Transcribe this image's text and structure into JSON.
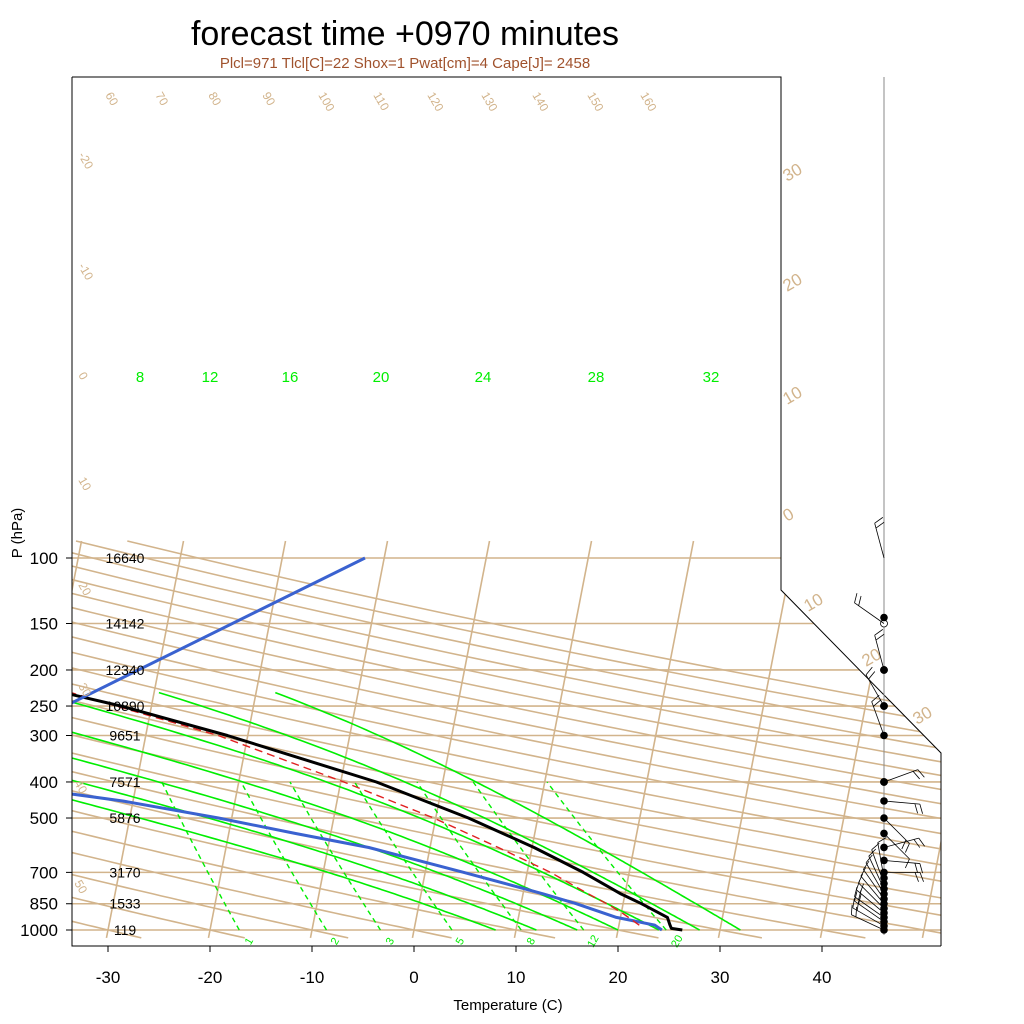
{
  "title": "forecast time +0970 minutes",
  "subtitle": "Plcl=971 Tlcl[C]=22 Shox=1 Pwat[cm]=4 Cape[J]= 2458",
  "colors": {
    "isobar": "#d2b48c",
    "isotherm": "#d2b48c",
    "adiabat": "#d2b48c",
    "moist_adiabat": "#00ee00",
    "mixing_ratio": "#00ee00",
    "temperature": "#000000",
    "dewpoint": "#3a62d0",
    "parcel": "#e02020",
    "axis": "#000000"
  },
  "chart_data": {
    "type": "skew-t",
    "xlabel": "Temperature (C)",
    "ylabel": "P (hPa)",
    "xlim": [
      -33,
      40
    ],
    "ylim": [
      1000,
      100
    ],
    "pressure_ticks": [
      100,
      150,
      200,
      250,
      300,
      400,
      500,
      700,
      850,
      1000
    ],
    "temperature_ticks": [
      -30,
      -20,
      -10,
      0,
      10,
      20,
      30,
      40
    ],
    "heights_m": [
      {
        "p": 100,
        "label": "16640"
      },
      {
        "p": 150,
        "label": "14142"
      },
      {
        "p": 200,
        "label": "12340"
      },
      {
        "p": 250,
        "label": "10890"
      },
      {
        "p": 300,
        "label": "9651"
      },
      {
        "p": 400,
        "label": "7571"
      },
      {
        "p": 500,
        "label": "5876"
      },
      {
        "p": 700,
        "label": "3170"
      },
      {
        "p": 850,
        "label": "1533"
      },
      {
        "p": 1000,
        "label": "119"
      }
    ],
    "isotherm_labels": [
      "30",
      "20",
      "10",
      "0",
      "10",
      "20",
      "30",
      "-20",
      "-10",
      "0",
      "10",
      "20",
      "30",
      "40",
      "50",
      "60",
      "70",
      "80",
      "90",
      "100",
      "110",
      "120",
      "130",
      "140",
      "150",
      "160"
    ],
    "moist_adiabat_labels": [
      "8",
      "12",
      "16",
      "20",
      "24",
      "28",
      "32"
    ],
    "mixing_ratio_labels": [
      "1",
      "2",
      "3",
      "5",
      "8",
      "12",
      "20"
    ],
    "temperature_profile": [
      {
        "p": 1000,
        "t": 26.3
      },
      {
        "p": 990,
        "t": 25.2
      },
      {
        "p": 970,
        "t": 25.0
      },
      {
        "p": 925,
        "t": 24.6
      },
      {
        "p": 850,
        "t": 21.8
      },
      {
        "p": 800,
        "t": 19.6
      },
      {
        "p": 700,
        "t": 15.5
      },
      {
        "p": 600,
        "t": 10.2
      },
      {
        "p": 500,
        "t": 3.2
      },
      {
        "p": 400,
        "t": -6.5
      },
      {
        "p": 300,
        "t": -22.0
      },
      {
        "p": 250,
        "t": -33.0
      },
      {
        "p": 225,
        "t": -40.5
      },
      {
        "p": 200,
        "t": -48.0
      },
      {
        "p": 175,
        "t": -54.5
      },
      {
        "p": 150,
        "t": -56.0
      },
      {
        "p": 125,
        "t": -57.0
      },
      {
        "p": 100,
        "t": -59.5
      }
    ],
    "dewpoint_profile": [
      {
        "p": 1000,
        "t": 24.3
      },
      {
        "p": 970,
        "t": 23.5
      },
      {
        "p": 925,
        "t": 19.6
      },
      {
        "p": 850,
        "t": 15.4
      },
      {
        "p": 800,
        "t": 12.0
      },
      {
        "p": 700,
        "t": 3.8
      },
      {
        "p": 600,
        "t": -6.0
      },
      {
        "p": 550,
        "t": -13.5
      },
      {
        "p": 500,
        "t": -21.3
      },
      {
        "p": 450,
        "t": -31.0
      },
      {
        "p": 400,
        "t": -45.0
      },
      {
        "p": 375,
        "t": -57.0
      },
      {
        "p": 350,
        "t": -70.0
      },
      {
        "p": 330,
        "t": -85.0
      }
    ],
    "parcel_profile": [
      {
        "p": 971,
        "t": 22.0
      },
      {
        "p": 900,
        "t": 20.1
      },
      {
        "p": 850,
        "t": 18.4
      },
      {
        "p": 800,
        "t": 16.4
      },
      {
        "p": 700,
        "t": 12.3
      },
      {
        "p": 600,
        "t": 6.7
      },
      {
        "p": 500,
        "t": -0.2
      },
      {
        "p": 400,
        "t": -9.7
      },
      {
        "p": 300,
        "t": -22.9
      },
      {
        "p": 250,
        "t": -33.5
      },
      {
        "p": 200,
        "t": -46.0
      },
      {
        "p": 180,
        "t": -52.0
      }
    ],
    "wind_barbs": [
      {
        "p": 1000,
        "dir": 295,
        "speed": 15
      },
      {
        "p": 975,
        "dir": 300,
        "speed": 15
      },
      {
        "p": 950,
        "dir": 305,
        "speed": 15
      },
      {
        "p": 925,
        "dir": 305,
        "speed": 15
      },
      {
        "p": 900,
        "dir": 310,
        "speed": 15
      },
      {
        "p": 875,
        "dir": 315,
        "speed": 10
      },
      {
        "p": 850,
        "dir": 320,
        "speed": 10
      },
      {
        "p": 825,
        "dir": 325,
        "speed": 10
      },
      {
        "p": 800,
        "dir": 330,
        "speed": 10
      },
      {
        "p": 775,
        "dir": 335,
        "speed": 10
      },
      {
        "p": 750,
        "dir": 340,
        "speed": 10
      },
      {
        "p": 725,
        "dir": 350,
        "speed": 10
      },
      {
        "p": 700,
        "dir": 90,
        "speed": 15
      },
      {
        "p": 650,
        "dir": 95,
        "speed": 15
      },
      {
        "p": 600,
        "dir": 75,
        "speed": 15
      },
      {
        "p": 550,
        "dir": 135,
        "speed": 10
      },
      {
        "p": 500,
        "dir": 135,
        "speed": 15
      },
      {
        "p": 450,
        "dir": 95,
        "speed": 15
      },
      {
        "p": 400,
        "dir": 70,
        "speed": 15
      },
      {
        "p": 300,
        "dir": 340,
        "speed": 15
      },
      {
        "p": 250,
        "dir": 330,
        "speed": 15
      },
      {
        "p": 200,
        "dir": 345,
        "speed": 20
      },
      {
        "p": 150,
        "dir": 305,
        "speed": 20
      },
      {
        "p": 100,
        "dir": 345,
        "speed": 15
      }
    ]
  }
}
